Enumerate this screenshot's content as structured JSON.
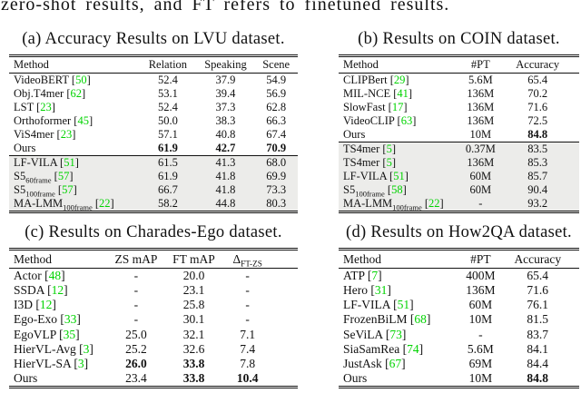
{
  "page": {
    "top_text": "zero-shot results, and FT refers to finetuned results.",
    "colors": {
      "citation": "#00d300",
      "shaded_row": "#ececea",
      "text": "#111111"
    }
  },
  "tables": {
    "a": {
      "caption": "(a) Accuracy Results on LVU dataset.",
      "headers": [
        {
          "text": "Method"
        },
        {
          "text": "Relation"
        },
        {
          "text": "Speaking"
        },
        {
          "text": "Scene"
        }
      ],
      "rows": [
        {
          "method": {
            "name": "VideoBERT",
            "cite": "50"
          },
          "values": [
            "52.4",
            "37.9",
            "54.9"
          ]
        },
        {
          "method": {
            "name": "Obj.T4mer",
            "cite": "62"
          },
          "values": [
            "53.1",
            "39.4",
            "56.9"
          ]
        },
        {
          "method": {
            "name": "LST",
            "cite": "23"
          },
          "values": [
            "52.4",
            "37.3",
            "62.8"
          ]
        },
        {
          "method": {
            "name": "Orthoformer",
            "cite": "45"
          },
          "values": [
            "50.0",
            "38.3",
            "66.3"
          ]
        },
        {
          "method": {
            "name": "ViS4mer",
            "cite": "23"
          },
          "values": [
            "57.1",
            "40.8",
            "67.4"
          ]
        },
        {
          "method": {
            "name": "Ours"
          },
          "values": [
            "61.9",
            "42.7",
            "70.9"
          ],
          "bold": [
            0,
            1,
            2
          ]
        },
        {
          "method": {
            "name": "LF-VILA",
            "cite": "51"
          },
          "values": [
            "61.5",
            "41.3",
            "68.0"
          ],
          "shaded": true,
          "rule_above": true
        },
        {
          "method": {
            "name": "S5",
            "sub": "60frame",
            "cite": "57"
          },
          "values": [
            "61.9",
            "41.8",
            "69.9"
          ],
          "shaded": true
        },
        {
          "method": {
            "name": "S5",
            "sub": "100frame",
            "cite": "57"
          },
          "values": [
            "66.7",
            "41.8",
            "73.3"
          ],
          "shaded": true
        },
        {
          "method": {
            "name": "MA-LMM",
            "sub": "100frame",
            "cite": "22"
          },
          "values": [
            "58.2",
            "44.8",
            "80.3"
          ],
          "shaded": true
        }
      ]
    },
    "b": {
      "caption": "(b) Results on COIN dataset.",
      "headers": [
        {
          "text": "Method"
        },
        {
          "text": "#PT"
        },
        {
          "text": "Accuracy"
        }
      ],
      "rows": [
        {
          "method": {
            "name": "CLIPBert",
            "cite": "29"
          },
          "values": [
            "5.6M",
            "65.4"
          ]
        },
        {
          "method": {
            "name": "MIL-NCE",
            "cite": "41"
          },
          "values": [
            "136M",
            "70.2"
          ]
        },
        {
          "method": {
            "name": "SlowFast",
            "cite": "17"
          },
          "values": [
            "136M",
            "71.6"
          ]
        },
        {
          "method": {
            "name": "VideoCLIP",
            "cite": "63"
          },
          "values": [
            "136M",
            "72.5"
          ]
        },
        {
          "method": {
            "name": "Ours"
          },
          "values": [
            "10M",
            "84.8"
          ],
          "bold": [
            1
          ]
        },
        {
          "method": {
            "name": "TS4mer",
            "cite": "5"
          },
          "values": [
            "0.37M",
            "83.5"
          ],
          "shaded": true,
          "rule_above": true
        },
        {
          "method": {
            "name": "TS4mer",
            "cite": "5"
          },
          "values": [
            "136M",
            "85.3"
          ],
          "shaded": true
        },
        {
          "method": {
            "name": "LF-VILA",
            "cite": "51"
          },
          "values": [
            "60M",
            "85.7"
          ],
          "shaded": true
        },
        {
          "method": {
            "name": "S5",
            "sub": "100frame",
            "cite": "58"
          },
          "values": [
            "60M",
            "90.4"
          ],
          "shaded": true
        },
        {
          "method": {
            "name": "MA-LMM",
            "sub": "100frame",
            "cite": "22"
          },
          "values": [
            "-",
            "93.2"
          ],
          "shaded": true
        }
      ]
    },
    "c": {
      "caption": "(c) Results on Charades-Ego dataset.",
      "headers": [
        {
          "text": "Method"
        },
        {
          "text": "ZS mAP"
        },
        {
          "text": "FT mAP"
        },
        {
          "text": "Δ",
          "sub": "FT-ZS"
        }
      ],
      "rows": [
        {
          "method": {
            "name": "Actor",
            "cite": "48"
          },
          "values": [
            "-",
            "20.0",
            "-"
          ]
        },
        {
          "method": {
            "name": "SSDA",
            "cite": "12"
          },
          "values": [
            "-",
            "23.1",
            "-"
          ]
        },
        {
          "method": {
            "name": "I3D",
            "cite": "12"
          },
          "values": [
            "-",
            "25.8",
            "-"
          ]
        },
        {
          "method": {
            "name": "Ego-Exo",
            "cite": "33"
          },
          "values": [
            "-",
            "30.1",
            "-"
          ]
        },
        {
          "method": {
            "name": "EgoVLP",
            "cite": "35"
          },
          "values": [
            "25.0",
            "32.1",
            "7.1"
          ]
        },
        {
          "method": {
            "name": "HierVL-Avg",
            "cite": "3"
          },
          "values": [
            "25.2",
            "32.6",
            "7.4"
          ]
        },
        {
          "method": {
            "name": "HierVL-SA",
            "cite": "3"
          },
          "values": [
            "26.0",
            "33.8",
            "7.8"
          ],
          "bold": [
            0,
            1
          ]
        },
        {
          "method": {
            "name": "Ours"
          },
          "values": [
            "23.4",
            "33.8",
            "10.4"
          ],
          "bold": [
            1,
            2
          ]
        }
      ]
    },
    "d": {
      "caption": "(d) Results on How2QA dataset.",
      "headers": [
        {
          "text": "Method"
        },
        {
          "text": "#PT"
        },
        {
          "text": "Accuracy"
        }
      ],
      "rows": [
        {
          "method": {
            "name": "ATP",
            "cite": "7"
          },
          "values": [
            "400M",
            "65.4"
          ]
        },
        {
          "method": {
            "name": "Hero",
            "cite": "31"
          },
          "values": [
            "136M",
            "71.6"
          ]
        },
        {
          "method": {
            "name": "LF-VILA",
            "cite": "51"
          },
          "values": [
            "60M",
            "76.1"
          ]
        },
        {
          "method": {
            "name": "FrozenBiLM",
            "cite": "68"
          },
          "values": [
            "10M",
            "81.5"
          ]
        },
        {
          "method": {
            "name": "SeViLA",
            "cite": "73"
          },
          "values": [
            "-",
            "83.7"
          ]
        },
        {
          "method": {
            "name": "SiaSamRea",
            "cite": "74"
          },
          "values": [
            "5.6M",
            "84.1"
          ]
        },
        {
          "method": {
            "name": "JustAsk",
            "cite": "67"
          },
          "values": [
            "69M",
            "84.4"
          ]
        },
        {
          "method": {
            "name": "Ours"
          },
          "values": [
            "10M",
            "84.8"
          ],
          "bold": [
            1
          ]
        }
      ]
    }
  }
}
